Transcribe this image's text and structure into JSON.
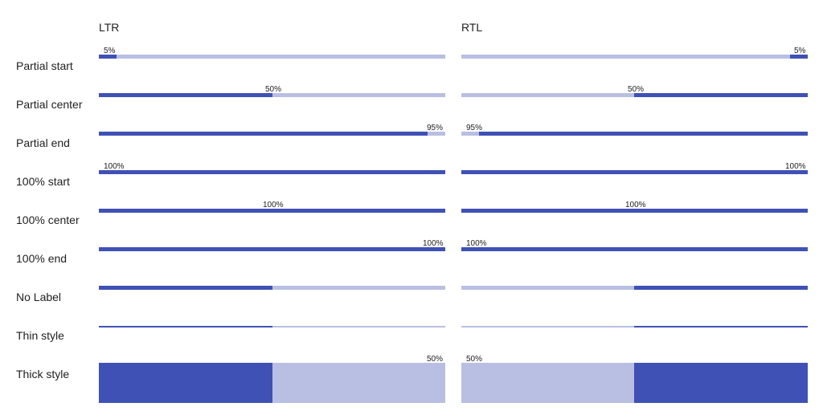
{
  "colors": {
    "track": "#b9bfe2",
    "fill": "#3f51b5",
    "text": "#212121"
  },
  "headers": {
    "ltr": "LTR",
    "rtl": "RTL"
  },
  "rows": [
    {
      "label": "Partial start",
      "style": "normal",
      "progress": 0.05,
      "ltr_text": "5%",
      "rtl_text": "5%",
      "label_align": "start"
    },
    {
      "label": "Partial center",
      "style": "normal",
      "progress": 0.5,
      "ltr_text": "50%",
      "rtl_text": "50%",
      "label_align": "center"
    },
    {
      "label": "Partial end",
      "style": "normal",
      "progress": 0.95,
      "ltr_text": "95%",
      "rtl_text": "95%",
      "label_align": "end"
    },
    {
      "label": "100% start",
      "style": "normal",
      "progress": 1.0,
      "ltr_text": "100%",
      "rtl_text": "100%",
      "label_align": "start"
    },
    {
      "label": "100% center",
      "style": "normal",
      "progress": 1.0,
      "ltr_text": "100%",
      "rtl_text": "100%",
      "label_align": "center"
    },
    {
      "label": "100% end",
      "style": "normal",
      "progress": 1.0,
      "ltr_text": "100%",
      "rtl_text": "100%",
      "label_align": "end"
    },
    {
      "label": "No Label",
      "style": "normal",
      "progress": 0.5,
      "ltr_text": "",
      "rtl_text": "",
      "label_align": "none"
    },
    {
      "label": "Thin style",
      "style": "thin",
      "progress": 0.5,
      "ltr_text": "",
      "rtl_text": "",
      "label_align": "none"
    },
    {
      "label": "Thick style",
      "style": "thick",
      "progress": 0.5,
      "ltr_text": "50%",
      "rtl_text": "50%",
      "label_align": "end"
    }
  ]
}
